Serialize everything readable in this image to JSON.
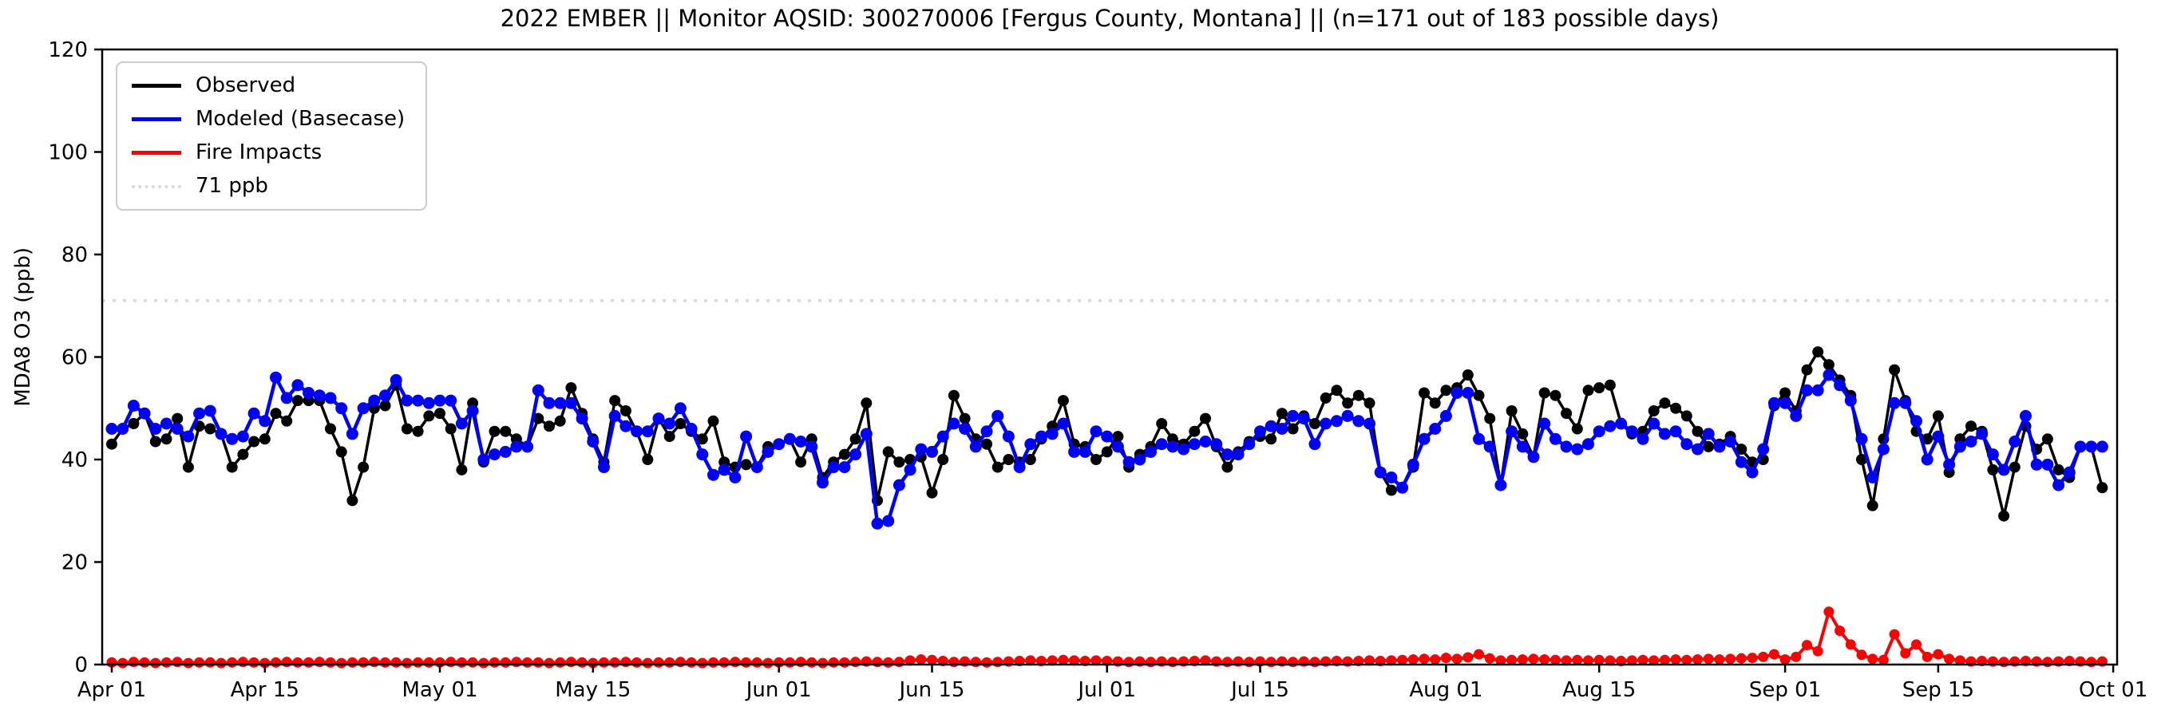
{
  "figure": {
    "title": "2022 EMBER || Monitor AQSID: 300270006 [Fergus County, Montana] || (n=171 out of 183 possible days)",
    "ylabel": "MDA8 O3 (ppb)"
  },
  "chart_data": {
    "type": "line",
    "title": "2022 EMBER || Monitor AQSID: 300270006 [Fergus County, Montana] || (n=171 out of 183 possible days)",
    "xlabel": "",
    "ylabel": "MDA8 O3 (ppb)",
    "ylim": [
      0,
      120
    ],
    "yticks": [
      0,
      20,
      40,
      60,
      80,
      100,
      120
    ],
    "x_start_date": "2022-04-01",
    "x_days_total": 183,
    "xticks": [
      {
        "day": 0,
        "label": "Apr 01"
      },
      {
        "day": 14,
        "label": "Apr 15"
      },
      {
        "day": 30,
        "label": "May 01"
      },
      {
        "day": 44,
        "label": "May 15"
      },
      {
        "day": 61,
        "label": "Jun 01"
      },
      {
        "day": 75,
        "label": "Jun 15"
      },
      {
        "day": 91,
        "label": "Jul 01"
      },
      {
        "day": 105,
        "label": "Jul 15"
      },
      {
        "day": 122,
        "label": "Aug 01"
      },
      {
        "day": 136,
        "label": "Aug 15"
      },
      {
        "day": 153,
        "label": "Sep 01"
      },
      {
        "day": 167,
        "label": "Sep 15"
      },
      {
        "day": 183,
        "label": "Oct 01"
      }
    ],
    "grid": false,
    "legend_position": "upper left",
    "threshold": {
      "label": "71 ppb",
      "value": 71,
      "color": "#d9d9d9",
      "style": "dotted"
    },
    "series": [
      {
        "name": "Observed",
        "color": "#000000",
        "marker": "circle",
        "values": [
          43,
          46,
          47,
          49,
          43.5,
          44,
          48,
          38.5,
          46.5,
          46,
          45,
          38.5,
          41,
          43.5,
          44,
          49,
          47.5,
          51.5,
          51.5,
          51.5,
          46,
          41.5,
          32,
          38.5,
          50,
          50.5,
          54.5,
          46,
          45.5,
          48.5,
          49,
          46,
          38,
          51,
          39.5,
          45.5,
          45.5,
          44,
          42.5,
          48,
          46.5,
          47.5,
          54,
          49,
          44,
          39.5,
          51.5,
          49.5,
          45.5,
          40,
          48,
          44.5,
          47,
          45.5,
          44,
          47.5,
          39.5,
          38.5,
          39,
          38.5,
          42.5,
          43,
          44,
          39.5,
          44,
          36.5,
          39.5,
          41,
          44,
          51,
          32,
          41.5,
          39.5,
          40,
          40.5,
          33.5,
          40,
          52.5,
          48,
          44,
          43,
          38.5,
          40,
          39.5,
          40,
          44,
          46.5,
          51.5,
          43,
          42.5,
          40,
          41.5,
          44.5,
          38.5,
          41,
          42.5,
          47,
          44,
          43,
          45.5,
          48,
          42.5,
          38.5,
          41.5,
          43.5,
          44.5,
          44,
          49,
          46,
          48.5,
          47,
          52,
          53.5,
          51,
          52.5,
          51,
          37.5,
          34,
          34.5,
          38.5,
          53,
          51,
          53.5,
          54,
          56.5,
          52.5,
          48,
          35,
          49.5,
          45,
          40.5,
          53,
          52.5,
          49,
          46,
          53.5,
          54,
          54.5,
          47,
          45,
          45.5,
          49.5,
          51,
          50,
          48.5,
          45.5,
          42.5,
          43,
          44.5,
          42,
          39.5,
          40,
          50.5,
          53,
          49.5,
          57.5,
          61,
          58.5,
          55.5,
          52.5,
          40,
          31,
          44,
          57.5,
          51.5,
          45.5,
          44,
          48.5,
          37.5,
          44,
          46.5,
          45.5,
          38,
          29,
          38.5,
          46.5,
          42,
          44,
          38,
          36.5,
          42.5,
          42.5,
          34.5
        ]
      },
      {
        "name": "Modeled (Basecase)",
        "color": "#0000ff",
        "marker": "circle",
        "values": [
          46,
          46,
          50.5,
          49,
          46,
          47,
          46,
          44.5,
          49,
          49.5,
          45,
          44,
          44.5,
          49,
          47.5,
          56,
          52,
          54.5,
          53,
          52.5,
          52,
          50,
          45,
          50,
          51.5,
          52.5,
          55.5,
          51.5,
          51.5,
          51,
          51.5,
          51.5,
          47,
          49.5,
          40,
          41,
          41.5,
          42.5,
          42.5,
          53.5,
          51,
          51,
          51,
          48,
          43.5,
          38.5,
          48.5,
          46.5,
          45.5,
          45.5,
          48,
          47,
          50,
          46,
          41,
          37,
          38,
          36.5,
          44.5,
          38.5,
          41.5,
          43,
          44,
          43.5,
          42.5,
          35.5,
          38.5,
          38.5,
          41,
          45,
          27.5,
          28,
          35,
          38,
          42,
          41.5,
          44.5,
          47,
          46,
          42.5,
          45.5,
          48.5,
          44.5,
          38.5,
          43,
          44.5,
          45,
          47,
          41.5,
          41.5,
          45.5,
          44.5,
          42.5,
          39.5,
          40,
          41.5,
          43,
          42.5,
          42,
          43,
          43.5,
          43,
          41,
          41,
          43,
          45.5,
          46.5,
          46,
          48.5,
          48,
          43,
          47,
          47.5,
          48.5,
          47.5,
          47,
          37.5,
          36.5,
          34.5,
          39,
          44,
          46,
          48.5,
          53,
          53,
          44,
          42.5,
          35,
          45.5,
          42.5,
          40.5,
          47,
          44,
          42.5,
          42,
          43,
          45.5,
          46.5,
          47,
          45.5,
          44,
          47,
          45,
          45.5,
          43,
          42,
          45,
          42.5,
          43.5,
          39.5,
          37.5,
          42,
          51,
          51,
          48.5,
          53.5,
          53.5,
          56.5,
          54.5,
          51.5,
          44,
          36.5,
          42,
          51,
          51,
          47.5,
          40,
          44.5,
          39,
          42.5,
          43.5,
          45,
          41,
          38,
          43.5,
          48.5,
          39,
          39,
          35,
          37.5,
          42.5,
          42.5,
          42.5
        ]
      },
      {
        "name": "Fire Impacts",
        "color": "#ff0000",
        "marker": "circle",
        "values": [
          0.4,
          0.3,
          0.5,
          0.4,
          0.3,
          0.4,
          0.5,
          0.3,
          0.4,
          0.4,
          0.3,
          0.4,
          0.5,
          0.4,
          0.3,
          0.4,
          0.5,
          0.4,
          0.4,
          0.5,
          0.4,
          0.3,
          0.4,
          0.4,
          0.5,
          0.4,
          0.4,
          0.3,
          0.4,
          0.4,
          0.4,
          0.5,
          0.4,
          0.4,
          0.3,
          0.4,
          0.4,
          0.5,
          0.4,
          0.4,
          0.3,
          0.4,
          0.5,
          0.4,
          0.3,
          0.4,
          0.4,
          0.5,
          0.4,
          0.3,
          0.4,
          0.4,
          0.5,
          0.4,
          0.3,
          0.4,
          0.4,
          0.5,
          0.4,
          0.4,
          0.3,
          0.4,
          0.4,
          0.5,
          0.4,
          0.3,
          0.4,
          0.4,
          0.5,
          0.6,
          0.5,
          0.4,
          0.5,
          0.8,
          1.0,
          0.9,
          0.7,
          0.5,
          0.6,
          0.5,
          0.4,
          0.5,
          0.6,
          0.7,
          0.8,
          0.7,
          0.8,
          0.9,
          0.8,
          0.7,
          0.8,
          0.7,
          0.6,
          0.5,
          0.6,
          0.5,
          0.6,
          0.5,
          0.6,
          0.7,
          0.8,
          0.6,
          0.5,
          0.6,
          0.5,
          0.6,
          0.5,
          0.6,
          0.5,
          0.6,
          0.5,
          0.6,
          0.7,
          0.6,
          0.7,
          0.8,
          0.7,
          0.8,
          0.9,
          1.0,
          1.1,
          1.0,
          1.3,
          1.1,
          1.4,
          2.0,
          1.2,
          0.8,
          0.9,
          1.0,
          1.1,
          1.0,
          0.9,
          0.8,
          0.9,
          0.8,
          0.9,
          0.8,
          0.7,
          0.8,
          0.9,
          0.8,
          0.9,
          1.0,
          0.9,
          1.0,
          1.1,
          1.0,
          1.1,
          1.2,
          1.3,
          1.5,
          2.0,
          1.0,
          1.5,
          3.8,
          2.6,
          10.3,
          6.6,
          3.9,
          1.9,
          1.1,
          0.9,
          5.9,
          2.2,
          3.9,
          1.5,
          2.0,
          1.1,
          0.8,
          0.6,
          0.7,
          0.6,
          0.5,
          0.6,
          0.7,
          0.6,
          0.5,
          0.6,
          0.7,
          0.6,
          0.5,
          0.6
        ]
      }
    ],
    "legend_entries": [
      {
        "label": "Observed",
        "color": "#000000",
        "style": "solid"
      },
      {
        "label": "Modeled (Basecase)",
        "color": "#0000ff",
        "style": "solid"
      },
      {
        "label": "Fire Impacts",
        "color": "#ff0000",
        "style": "solid"
      },
      {
        "label": "71 ppb",
        "color": "#d9d9d9",
        "style": "dotted"
      }
    ]
  }
}
